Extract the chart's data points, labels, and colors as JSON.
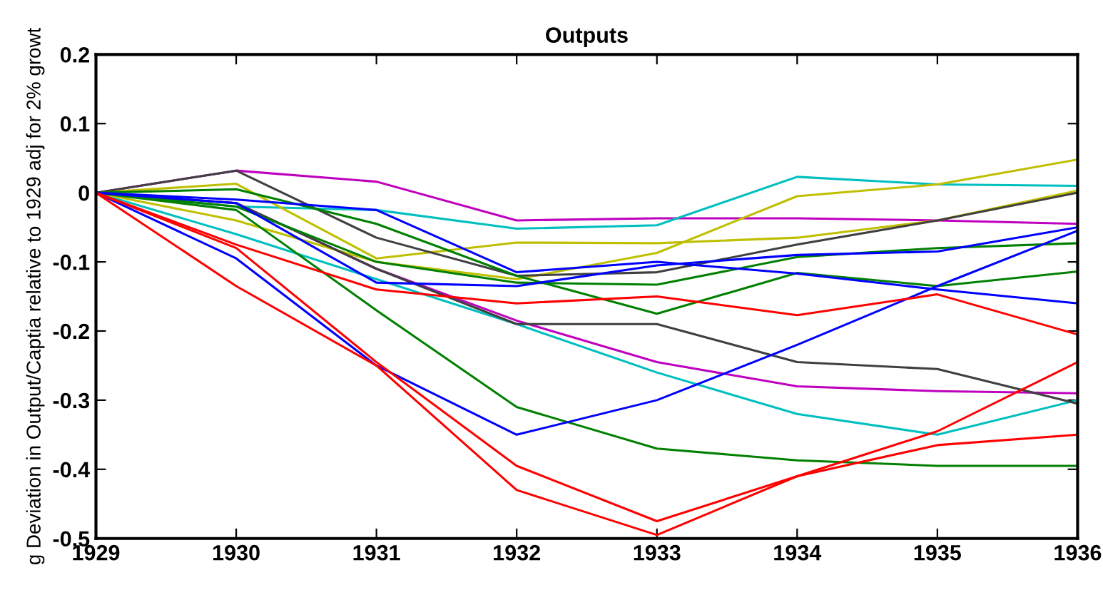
{
  "chart_data": {
    "type": "line",
    "title": "Outputs",
    "ylabel": "g Deviation in Output/Captia relative to 1929 adj for 2% growt",
    "x": [
      1929,
      1930,
      1931,
      1932,
      1933,
      1934,
      1935,
      1936
    ],
    "xlim": [
      1929,
      1936
    ],
    "xticks": [
      1929,
      1930,
      1931,
      1932,
      1933,
      1934,
      1935,
      1936
    ],
    "ylim": [
      -0.5,
      0.2
    ],
    "yticks": [
      -0.5,
      -0.4,
      -0.3,
      -0.2,
      -0.1,
      0,
      0.1,
      0.2
    ],
    "grid": false,
    "legend": false,
    "marker": "none",
    "line_style": "solid",
    "series": [
      {
        "color": "#bf00bf",
        "values": [
          0,
          0.032,
          0.016,
          -0.04,
          -0.037,
          -0.037,
          -0.04,
          -0.045
        ]
      },
      {
        "color": "#bf00bf",
        "values": [
          0,
          -0.015,
          -0.11,
          -0.185,
          -0.245,
          -0.28,
          -0.287,
          -0.29
        ]
      },
      {
        "color": "#00bfbf",
        "values": [
          0,
          -0.02,
          -0.025,
          -0.052,
          -0.047,
          0.023,
          0.012,
          0.01
        ]
      },
      {
        "color": "#00bfbf",
        "values": [
          0,
          -0.06,
          -0.125,
          -0.19,
          -0.26,
          -0.32,
          -0.35,
          -0.3
        ]
      },
      {
        "color": "#bfbf00",
        "values": [
          0,
          0.013,
          -0.095,
          -0.072,
          -0.073,
          -0.065,
          -0.04,
          0.003
        ]
      },
      {
        "color": "#bfbf00",
        "values": [
          0,
          -0.04,
          -0.1,
          -0.125,
          -0.087,
          -0.005,
          0.012,
          0.048
        ]
      },
      {
        "color": "#404040",
        "values": [
          0,
          0.032,
          -0.065,
          -0.12,
          -0.115,
          -0.075,
          -0.04,
          0
        ]
      },
      {
        "color": "#404040",
        "values": [
          0,
          -0.015,
          -0.11,
          -0.19,
          -0.19,
          -0.245,
          -0.255,
          -0.305
        ]
      },
      {
        "color": "#008000",
        "values": [
          0,
          0.005,
          -0.045,
          -0.12,
          -0.175,
          -0.116,
          -0.135,
          -0.114
        ]
      },
      {
        "color": "#008000",
        "values": [
          0,
          -0.02,
          -0.1,
          -0.13,
          -0.133,
          -0.093,
          -0.08,
          -0.073
        ]
      },
      {
        "color": "#008000",
        "values": [
          0,
          -0.025,
          -0.17,
          -0.31,
          -0.37,
          -0.387,
          -0.395,
          -0.395
        ]
      },
      {
        "color": "#0000ff",
        "values": [
          0,
          -0.01,
          -0.025,
          -0.115,
          -0.1,
          -0.117,
          -0.14,
          -0.16
        ]
      },
      {
        "color": "#0000ff",
        "values": [
          0,
          -0.015,
          -0.13,
          -0.135,
          -0.105,
          -0.09,
          -0.085,
          -0.05
        ]
      },
      {
        "color": "#0000ff",
        "values": [
          0,
          -0.095,
          -0.25,
          -0.35,
          -0.3,
          -0.22,
          -0.135,
          -0.055
        ]
      },
      {
        "color": "#ff0000",
        "values": [
          0,
          -0.075,
          -0.14,
          -0.16,
          -0.15,
          -0.177,
          -0.147,
          -0.205
        ]
      },
      {
        "color": "#ff0000",
        "values": [
          0,
          -0.08,
          -0.245,
          -0.395,
          -0.475,
          -0.41,
          -0.365,
          -0.35
        ]
      },
      {
        "color": "#ff0000",
        "values": [
          0,
          -0.135,
          -0.25,
          -0.43,
          -0.495,
          -0.41,
          -0.345,
          -0.245
        ]
      }
    ]
  }
}
